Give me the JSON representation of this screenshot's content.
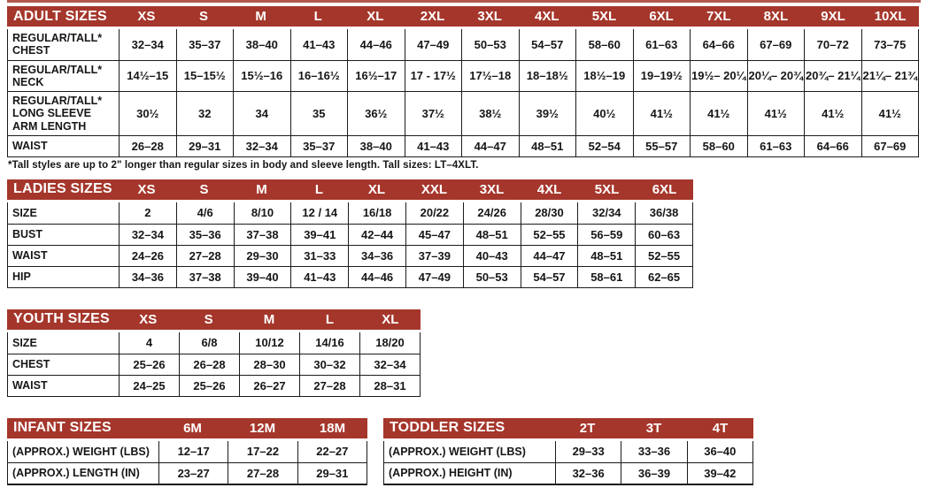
{
  "colors": {
    "header_bg": "#A5362B",
    "header_text": "#FFFFFF",
    "border": "#1b1b1b",
    "text": "#161616",
    "top_rule": "#b3564e"
  },
  "footnote": "*Tall styles are up to 2\" longer than regular sizes in body and sleeve length. Tall sizes: LT–4XLT.",
  "tables": [
    {
      "id": "adult",
      "title": "ADULT SIZES",
      "columns": [
        "XS",
        "S",
        "M",
        "L",
        "XL",
        "2XL",
        "3XL",
        "4XL",
        "5XL",
        "6XL",
        "7XL",
        "8XL",
        "9XL",
        "10XL"
      ],
      "rows": [
        {
          "label_lines": [
            "REGULAR/TALL*",
            "CHEST"
          ],
          "values": [
            "32–34",
            "35–37",
            "38–40",
            "41–43",
            "44–46",
            "47–49",
            "50–53",
            "54–57",
            "58–60",
            "61–63",
            "64–66",
            "67–69",
            "70–72",
            "73–75"
          ]
        },
        {
          "label_lines": [
            "REGULAR/TALL*",
            "NECK"
          ],
          "values": [
            "14½–15",
            "15–15½",
            "15½–16",
            "16–16½",
            "16½–17",
            "17 - 17½",
            "17½–18",
            "18–18½",
            "18½–19",
            "19–19½",
            "19½– 20¼",
            "20¼– 20¾",
            "20¾– 21¼",
            "21¼– 21¾"
          ]
        },
        {
          "label_lines": [
            "REGULAR/TALL*",
            "LONG SLEEVE",
            "ARM LENGTH"
          ],
          "values": [
            "30½",
            "32",
            "34",
            "35",
            "36½",
            "37½",
            "38½",
            "39½",
            "40½",
            "41½",
            "41½",
            "41½",
            "41½",
            "41½"
          ]
        },
        {
          "label_lines": [
            "WAIST"
          ],
          "values": [
            "26–28",
            "29–31",
            "32–34",
            "35–37",
            "38–40",
            "41–43",
            "44–47",
            "48–51",
            "52–54",
            "55–57",
            "58–60",
            "61–63",
            "64–66",
            "67–69"
          ]
        }
      ]
    },
    {
      "id": "ladies",
      "title": "LADIES SIZES",
      "columns": [
        "XS",
        "S",
        "M",
        "L",
        "XL",
        "XXL",
        "3XL",
        "4XL",
        "5XL",
        "6XL"
      ],
      "rows": [
        {
          "label_lines": [
            "SIZE"
          ],
          "values": [
            "2",
            "4/6",
            "8/10",
            "12 / 14",
            "16/18",
            "20/22",
            "24/26",
            "28/30",
            "32/34",
            "36/38"
          ]
        },
        {
          "label_lines": [
            "BUST"
          ],
          "values": [
            "32–34",
            "35–36",
            "37–38",
            "39–41",
            "42–44",
            "45–47",
            "48–51",
            "52–55",
            "56–59",
            "60–63"
          ]
        },
        {
          "label_lines": [
            "WAIST"
          ],
          "values": [
            "24–26",
            "27–28",
            "29–30",
            "31–33",
            "34–36",
            "37–39",
            "40–43",
            "44–47",
            "48–51",
            "52–55"
          ]
        },
        {
          "label_lines": [
            "HIP"
          ],
          "values": [
            "34–36",
            "37–38",
            "39–40",
            "41–43",
            "44–46",
            "47–49",
            "50–53",
            "54–57",
            "58–61",
            "62–65"
          ]
        }
      ]
    },
    {
      "id": "youth",
      "title": "YOUTH SIZES",
      "columns": [
        "XS",
        "S",
        "M",
        "L",
        "XL"
      ],
      "rows": [
        {
          "label_lines": [
            "SIZE"
          ],
          "values": [
            "4",
            "6/8",
            "10/12",
            "14/16",
            "18/20"
          ]
        },
        {
          "label_lines": [
            "CHEST"
          ],
          "values": [
            "25–26",
            "26–28",
            "28–30",
            "30–32",
            "32–34"
          ]
        },
        {
          "label_lines": [
            "WAIST"
          ],
          "values": [
            "24–25",
            "25–26",
            "26–27",
            "27–28",
            "28–31"
          ]
        }
      ]
    },
    {
      "id": "infant",
      "title": "INFANT SIZES",
      "columns": [
        "6M",
        "12M",
        "18M"
      ],
      "rows": [
        {
          "label_lines": [
            "(APPROX.) WEIGHT (LBS)"
          ],
          "values": [
            "12–17",
            "17–22",
            "22–27"
          ]
        },
        {
          "label_lines": [
            "(APPROX.) LENGTH (IN)"
          ],
          "values": [
            "23–27",
            "27–28",
            "29–31"
          ]
        }
      ]
    },
    {
      "id": "toddler",
      "title": "TODDLER SIZES",
      "columns": [
        "2T",
        "3T",
        "4T"
      ],
      "rows": [
        {
          "label_lines": [
            "(APPROX.) WEIGHT (LBS)"
          ],
          "values": [
            "29–33",
            "33–36",
            "36–40"
          ]
        },
        {
          "label_lines": [
            "(APPROX.) HEIGHT (IN)"
          ],
          "values": [
            "32–36",
            "36–39",
            "39–42"
          ]
        }
      ]
    }
  ]
}
